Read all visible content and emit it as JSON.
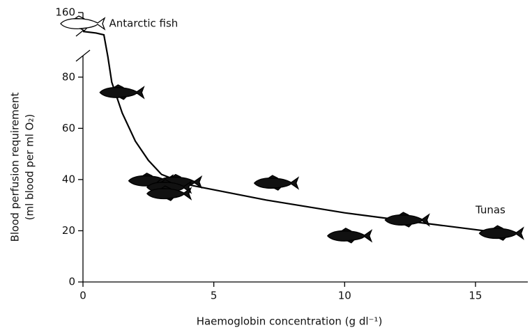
{
  "chart_data": {
    "type": "scatter",
    "x_label": "Haemoglobin concentration (g dl⁻¹)",
    "y_label": [
      "Blood perfusion requirement",
      "(ml blood per ml O₂)"
    ],
    "xlim": [
      0,
      17
    ],
    "xticks": [
      0,
      5,
      10,
      15
    ],
    "ylim": [
      0,
      160
    ],
    "yticks": [
      0,
      20,
      40,
      60,
      80,
      160
    ],
    "axis_break": [
      90,
      150
    ],
    "annotations": [
      {
        "text": "Antarctic fish",
        "x": 1.0,
        "y": 155
      },
      {
        "text": "Tunas",
        "x": 15.0,
        "y": 28
      }
    ],
    "series": [
      {
        "color": "#ffffff",
        "x": [
          0.0
        ],
        "y": [
          155
        ]
      },
      {
        "color": "#111111",
        "x": [
          1.5,
          2.6,
          3.7,
          3.3,
          3.3,
          7.4,
          10.2,
          12.4,
          16.0
        ],
        "y": [
          74,
          39.5,
          39,
          37,
          34.5,
          38.6,
          18,
          24.2,
          19
        ]
      }
    ],
    "curve": {
      "x": [
        0,
        0.5,
        0.8,
        0.95,
        1.1,
        1.5,
        2,
        2.5,
        3,
        4,
        5,
        7,
        10,
        13,
        16.5
      ],
      "y": [
        151.5,
        150.8,
        150,
        88,
        78,
        66,
        55,
        47.5,
        42,
        38,
        36,
        32,
        27,
        23,
        18.5
      ]
    }
  }
}
